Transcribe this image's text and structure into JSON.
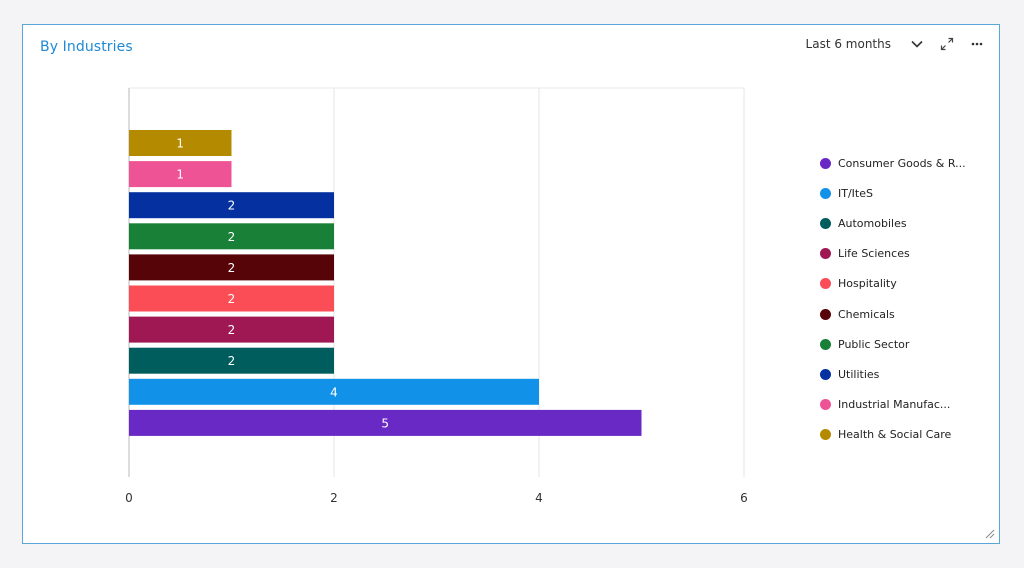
{
  "card": {
    "title": "By Industries",
    "range_label": "Last 6 months",
    "icons": {
      "dropdown": "chevron-down-icon",
      "expand": "expand-icon",
      "more": "more-horizontal-icon",
      "resize": "resize-handle-icon"
    }
  },
  "chart_data": {
    "type": "bar",
    "orientation": "horizontal",
    "title": "By Industries",
    "xlabel": "",
    "ylabel": "",
    "xlim": [
      0,
      6
    ],
    "x_ticks": [
      "0",
      "2",
      "4",
      "6"
    ],
    "grid": true,
    "legend_position": "right",
    "categories": [
      "Health & Social Care",
      "Industrial Manufac...",
      "Utilities",
      "Public Sector",
      "Chemicals",
      "Hospitality",
      "Life Sciences",
      "Automobiles",
      "IT/IteS",
      "Consumer Goods & R..."
    ],
    "values": [
      1,
      1,
      2,
      2,
      2,
      2,
      2,
      2,
      4,
      5
    ],
    "colors": [
      "#b38a00",
      "#ee5396",
      "#0530a0",
      "#198038",
      "#570408",
      "#fa4d56",
      "#9f1853",
      "#005d5d",
      "#1192e8",
      "#6929c4"
    ],
    "legend": [
      {
        "label": "Consumer Goods & R...",
        "color": "#6929c4"
      },
      {
        "label": "IT/IteS",
        "color": "#1192e8"
      },
      {
        "label": "Automobiles",
        "color": "#005d5d"
      },
      {
        "label": "Life Sciences",
        "color": "#9f1853"
      },
      {
        "label": "Hospitality",
        "color": "#fa4d56"
      },
      {
        "label": "Chemicals",
        "color": "#570408"
      },
      {
        "label": "Public Sector",
        "color": "#198038"
      },
      {
        "label": "Utilities",
        "color": "#0530a0"
      },
      {
        "label": "Industrial Manufac...",
        "color": "#ee5396"
      },
      {
        "label": "Health & Social Care",
        "color": "#b38a00"
      }
    ]
  }
}
